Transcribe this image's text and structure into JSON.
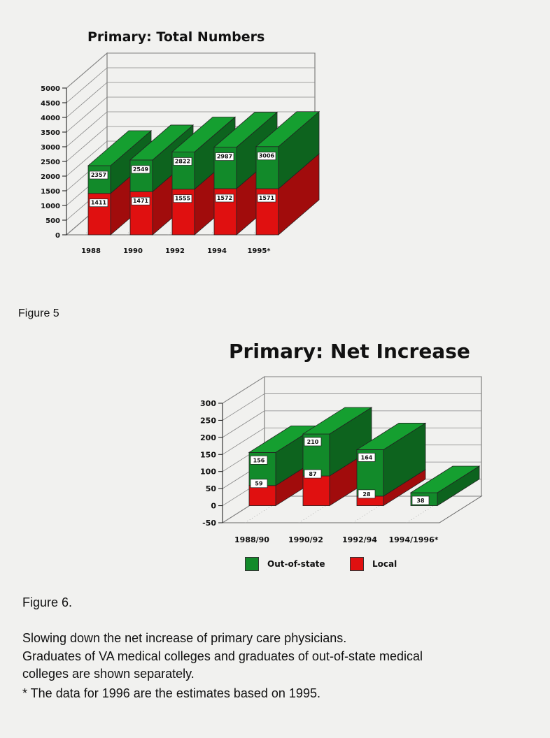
{
  "chart_data": [
    {
      "type": "bar",
      "title": "Primary: Total Numbers",
      "xlabel": "",
      "ylabel": "",
      "categories": [
        "1988",
        "1990",
        "1992",
        "1994",
        "1995*"
      ],
      "series": [
        {
          "name": "Local",
          "values": [
            1411,
            1471,
            1555,
            1572,
            1571
          ],
          "color": "#e01010"
        },
        {
          "name": "Out-of-state",
          "values": [
            946,
            1078,
            1267,
            1415,
            1435
          ],
          "color": "#128a2a"
        }
      ],
      "data_labels": {
        "Local": [
          "1411",
          "1471",
          "1555",
          "1572",
          "1571"
        ],
        "Total": [
          "2357",
          "2549",
          "2822",
          "2987",
          "3006"
        ]
      },
      "ylim": [
        0,
        5000
      ],
      "yticks": [
        "0",
        "500",
        "1000",
        "1500",
        "2000",
        "2500",
        "3000",
        "3500",
        "4000",
        "4500",
        "5000"
      ],
      "stacked": true,
      "grid": true
    },
    {
      "type": "bar",
      "title": "Primary: Net Increase",
      "xlabel": "",
      "ylabel": "",
      "categories": [
        "1988/90",
        "1990/92",
        "1992/94",
        "1994/1996*"
      ],
      "series": [
        {
          "name": "Local",
          "values": [
            59,
            87,
            28,
            0
          ],
          "color": "#e01010"
        },
        {
          "name": "Out-of-state",
          "values": [
            97,
            123,
            136,
            38
          ],
          "color": "#128a2a"
        }
      ],
      "data_labels": {
        "Local": [
          "59",
          "87",
          "28",
          ""
        ],
        "Total": [
          "156",
          "210",
          "164",
          "38"
        ]
      },
      "ylim": [
        -50,
        300
      ],
      "yticks": [
        "-50",
        "0",
        "50",
        "100",
        "150",
        "200",
        "250",
        "300"
      ],
      "stacked": true,
      "grid": true,
      "legend": {
        "placement": "bottom",
        "items": [
          {
            "label": "Out-of-state",
            "color": "#128a2a"
          },
          {
            "label": "Local",
            "color": "#e01010"
          }
        ]
      }
    }
  ],
  "captions": {
    "figure5": "Figure 5",
    "figure6": "Figure 6.",
    "lines": [
      "Slowing down the net increase of primary care physicians.",
      "Graduates of VA medical colleges and graduates of out-of-state medical",
      "colleges are shown separately.",
      "*  The data for 1996 are the estimates based on 1995."
    ]
  }
}
